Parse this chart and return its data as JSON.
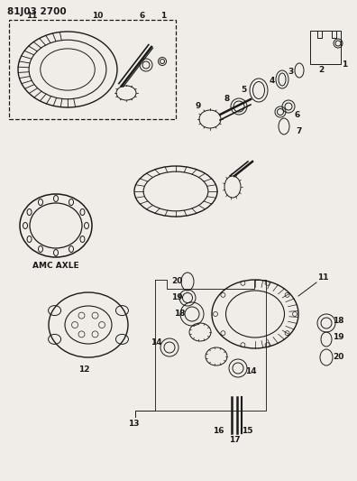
{
  "title": "81J03 2700",
  "bg_color": "#f0ede8",
  "line_color": "#1a1a1a",
  "amc_axle_label": "AMC AXLE",
  "figsize": [
    3.96,
    5.33
  ],
  "dpi": 100
}
